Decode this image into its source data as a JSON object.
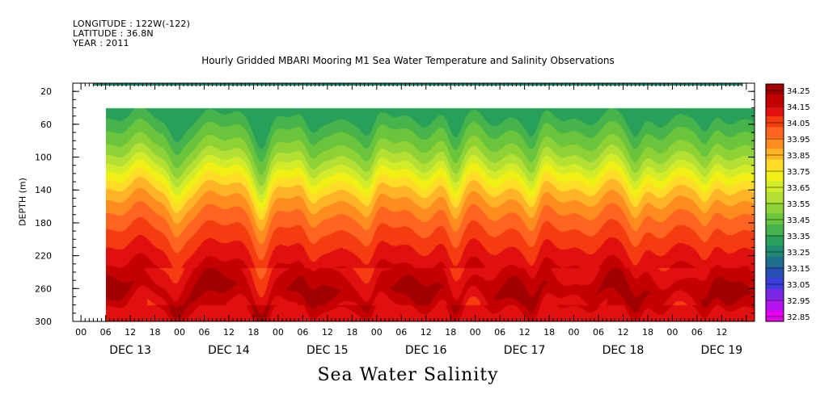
{
  "header": {
    "longitude": "LONGITUDE : 122W(-122)",
    "latitude": "LATITUDE : 36.8N",
    "year": "YEAR : 2011"
  },
  "title": "Hourly Gridded MBARI Mooring M1 Sea Water Temperature and Salinity Observations",
  "bottom_title": "Sea Water Salinity",
  "chart_data": {
    "type": "heatmap",
    "title": "Hourly Gridded MBARI Mooring M1 Sea Water Temperature and Salinity Observations",
    "xlabel": "",
    "ylabel": "DEPTH (m)",
    "subtitle": "Sea Water Salinity",
    "y_range": [
      300,
      10
    ],
    "y_ticks": [
      20,
      60,
      100,
      140,
      180,
      220,
      260,
      300
    ],
    "x_hour_ticks": [
      "00",
      "06",
      "12",
      "18",
      "00",
      "06",
      "12",
      "18",
      "00",
      "06",
      "12",
      "18",
      "00",
      "06",
      "12",
      "18",
      "00",
      "06",
      "12",
      "18",
      "00",
      "06",
      "12",
      "18",
      "00",
      "06",
      "12"
    ],
    "x_day_labels": [
      "DEC 13",
      "DEC 14",
      "DEC 15",
      "DEC 16",
      "DEC 17",
      "DEC 18",
      "DEC 19"
    ],
    "x_range_hours": [
      -2,
      164
    ],
    "data_start_hour": 3,
    "colorbar": {
      "levels": [
        "34.25",
        "34.15",
        "34.05",
        "33.95",
        "33.85",
        "33.75",
        "33.65",
        "33.55",
        "33.45",
        "33.35",
        "33.25",
        "33.15",
        "33.05",
        "32.95",
        "32.85"
      ],
      "min": 32.85,
      "max": 34.3
    },
    "surface_layer": {
      "depth_m": [
        10,
        13
      ],
      "salinity": 33.3
    },
    "gap_depth_m": [
      13,
      40
    ],
    "profile_depth_m": [
      40,
      60,
      80,
      100,
      120,
      140,
      160,
      180,
      200,
      220,
      240,
      260,
      280,
      300
    ],
    "base_profile_salinity": [
      33.33,
      33.42,
      33.5,
      33.6,
      33.74,
      33.86,
      33.95,
      34.02,
      34.08,
      34.14,
      34.2,
      34.26,
      34.16,
      34.16
    ],
    "upwelling_events_hour": [
      23,
      44,
      56,
      70,
      91,
      110,
      135,
      152
    ]
  }
}
